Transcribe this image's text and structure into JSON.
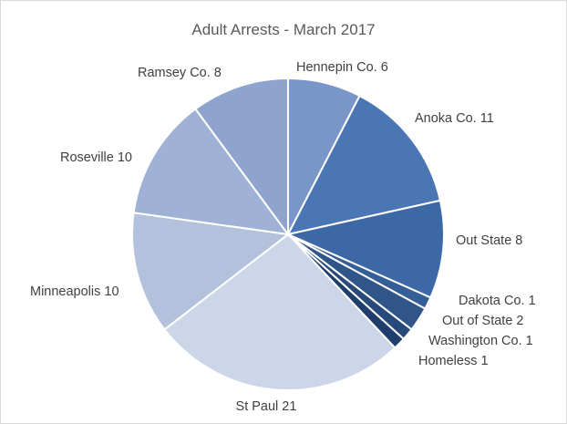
{
  "chart_data": {
    "type": "pie",
    "title": "Adult Arrests - March 2017",
    "slices": [
      {
        "label": "Hennepin Co.",
        "value": 6,
        "color": "#7a96c8"
      },
      {
        "label": "Anoka Co.",
        "value": 11,
        "color": "#4a76b4"
      },
      {
        "label": "Out State",
        "value": 8,
        "color": "#3d68a6"
      },
      {
        "label": "Dakota Co.",
        "value": 1,
        "color": "#355d96"
      },
      {
        "label": "Out of State",
        "value": 2,
        "color": "#2f5589"
      },
      {
        "label": "Washington Co.",
        "value": 1,
        "color": "#284a7a"
      },
      {
        "label": "Homeless",
        "value": 1,
        "color": "#1f3e6c"
      },
      {
        "label": "St Paul",
        "value": 21,
        "color": "#cdd6e8"
      },
      {
        "label": "Minneapolis",
        "value": 10,
        "color": "#b4c1dc"
      },
      {
        "label": "Roseville",
        "value": 10,
        "color": "#9fb1d4"
      },
      {
        "label": "Ramsey Co.",
        "value": 8,
        "color": "#8ea3cd"
      }
    ],
    "data_labels": [
      "Hennepin Co. 6",
      "Anoka Co. 11",
      "Out State 8",
      "Dakota Co. 1",
      "Out of State 2",
      "Washington Co. 1",
      "Homeless 1",
      "St Paul 21",
      "Minneapolis 10",
      "Roseville 10",
      "Ramsey Co. 8"
    ],
    "legend": "none",
    "start_at": "top, clockwise"
  }
}
